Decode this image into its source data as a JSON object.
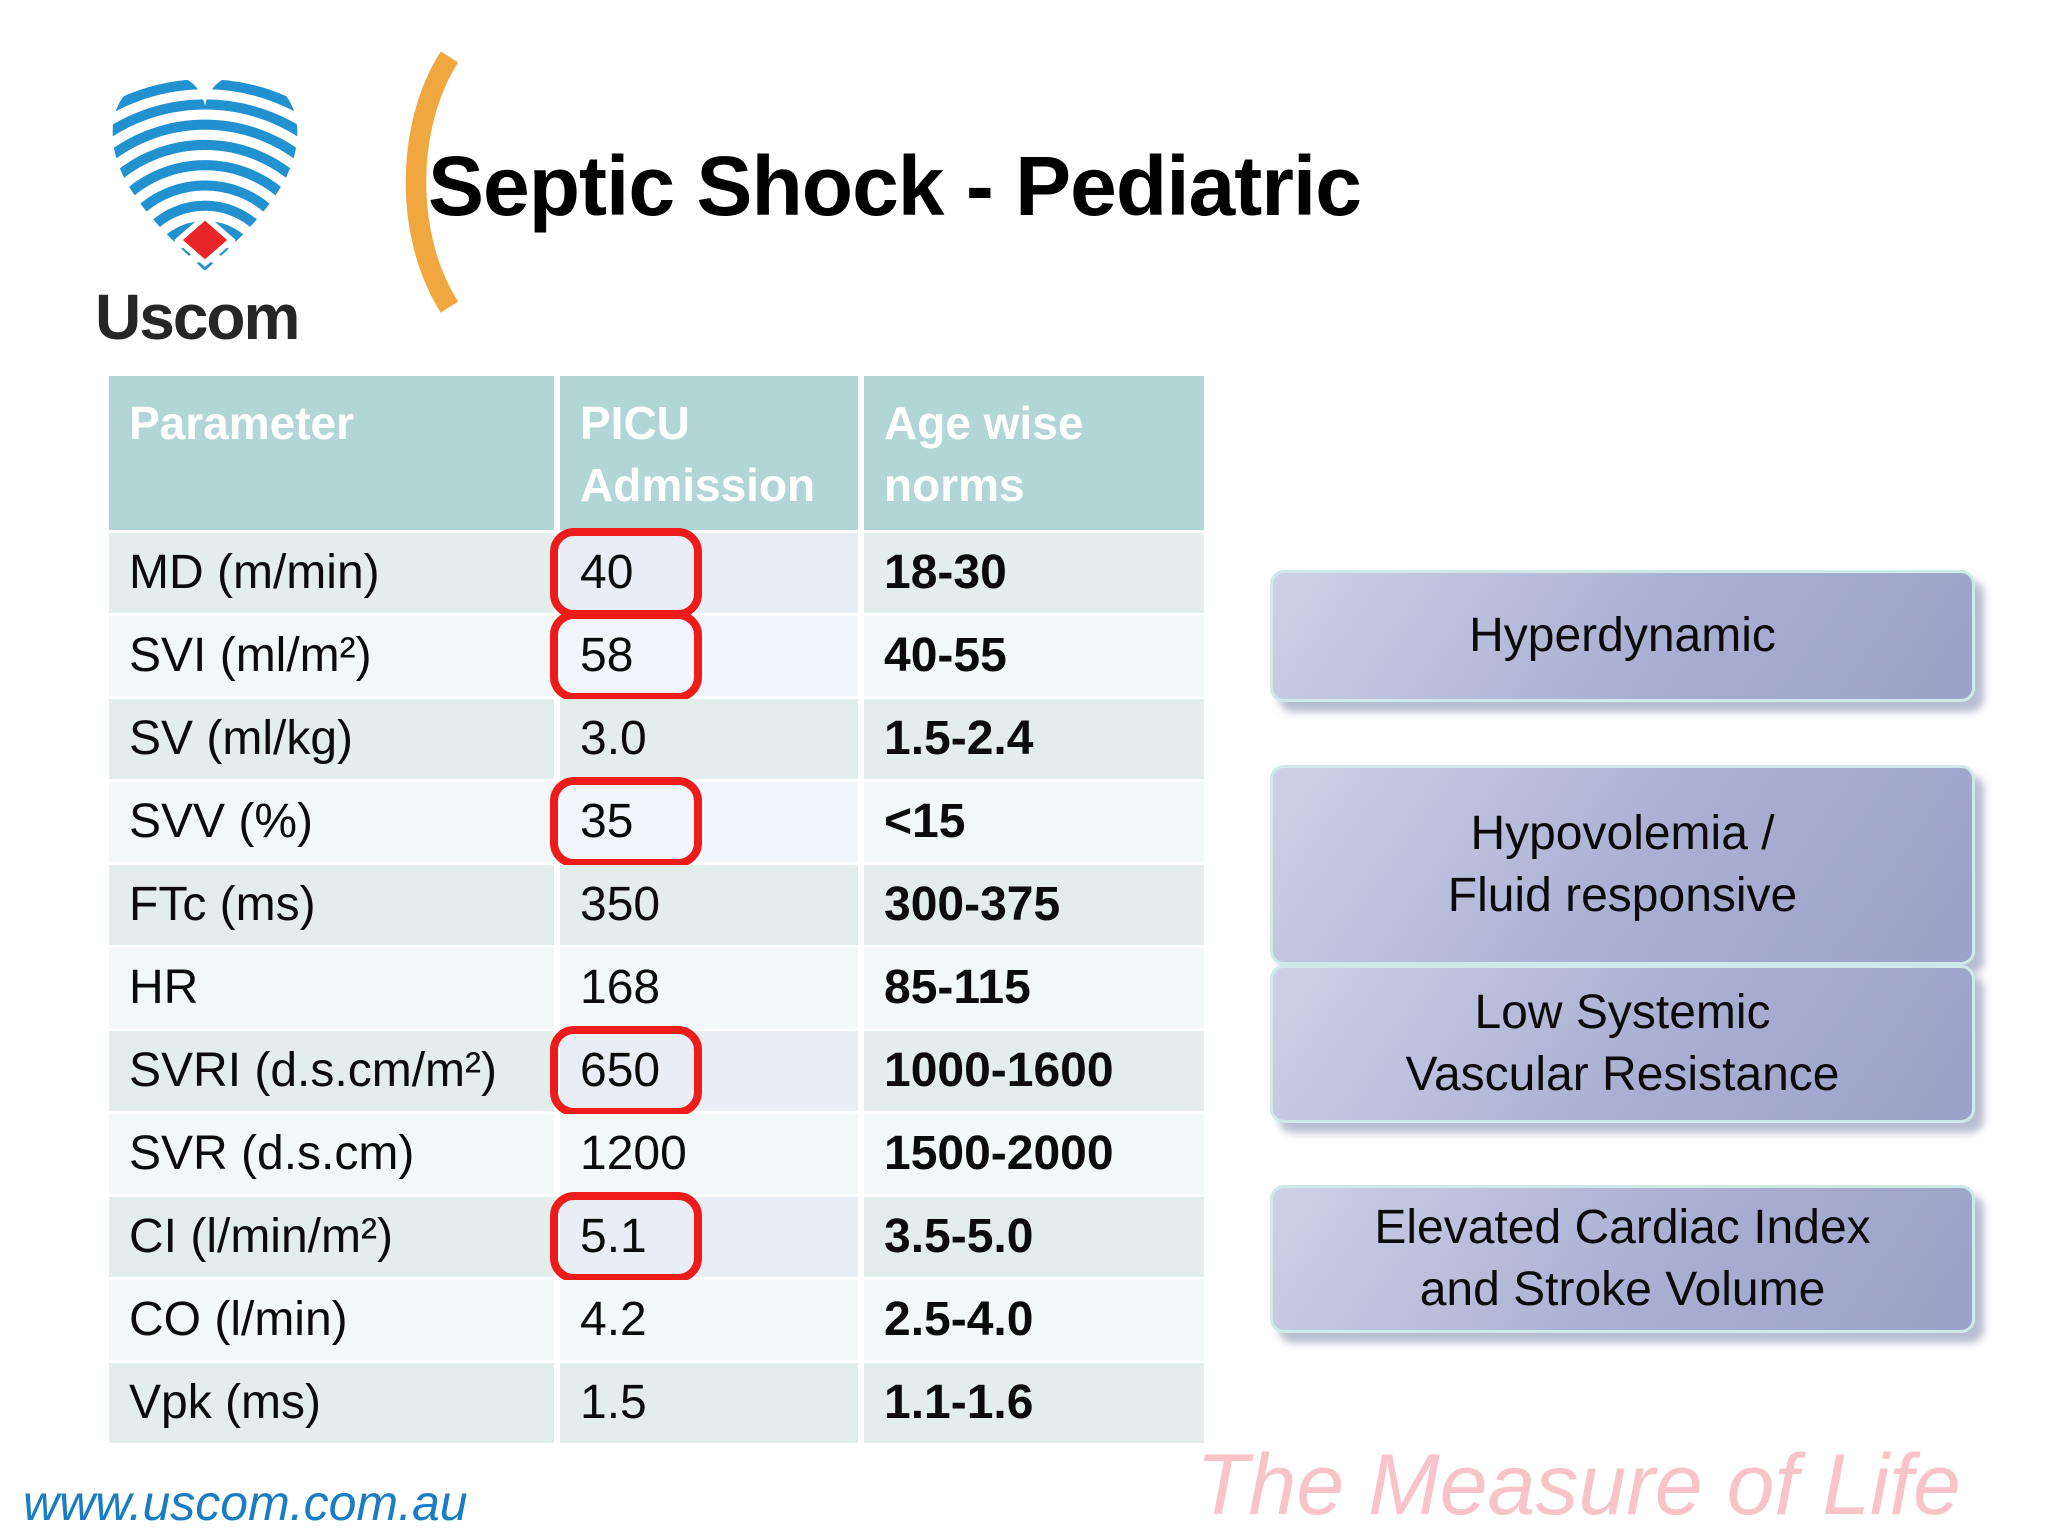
{
  "title": "Septic Shock - Pediatric",
  "logo": {
    "brand": "Uscom"
  },
  "table": {
    "columns": [
      "Parameter",
      "PICU Admission",
      "Age wise norms"
    ],
    "rows": [
      {
        "parameter": "MD (m/min)",
        "picu": "40",
        "norms": "18-30",
        "flagged": true
      },
      {
        "parameter": "SVI (ml/m²)",
        "picu": "58",
        "norms": "40-55",
        "flagged": true
      },
      {
        "parameter": "SV (ml/kg)",
        "picu": "3.0",
        "norms": "1.5-2.4",
        "flagged": false
      },
      {
        "parameter": "SVV (%)",
        "picu": "35",
        "norms": "<15",
        "flagged": true
      },
      {
        "parameter": "FTc (ms)",
        "picu": "350",
        "norms": "300-375",
        "flagged": false
      },
      {
        "parameter": "HR",
        "picu": "168",
        "norms": "85-115",
        "flagged": false
      },
      {
        "parameter": "SVRI (d.s.cm/m²)",
        "picu": "650",
        "norms": "1000-1600",
        "flagged": true
      },
      {
        "parameter": "SVR (d.s.cm)",
        "picu": "1200",
        "norms": "1500-2000",
        "flagged": false
      },
      {
        "parameter": "CI (l/min/m²)",
        "picu": "5.1",
        "norms": "3.5-5.0",
        "flagged": true
      },
      {
        "parameter": "CO (l/min)",
        "picu": "4.2",
        "norms": "2.5-4.0",
        "flagged": false
      },
      {
        "parameter": "Vpk (ms)",
        "picu": "1.5",
        "norms": "1.1-1.6",
        "flagged": false
      }
    ]
  },
  "callouts": [
    {
      "lines": [
        "Hyperdynamic"
      ]
    },
    {
      "lines": [
        "Hypovolemia /",
        "Fluid responsive"
      ]
    },
    {
      "lines": [
        "Low Systemic",
        "Vascular Resistance"
      ]
    },
    {
      "lines": [
        "Elevated Cardiac Index",
        "and Stroke Volume"
      ]
    }
  ],
  "footer": {
    "website": "www.uscom.com.au",
    "tagline": "The Measure of Life"
  },
  "colors": {
    "header_bg": "#b2d6d6",
    "row_odd": "#e2edec",
    "row_even": "#f2f8f7",
    "highlight_red": "#ee1b1b",
    "callout_fill": "#a9afd2",
    "callout_border": "#cdeae9",
    "heart_blue": "#2191d0",
    "heart_red": "#e8262a",
    "arc_orange": "#f0a73f",
    "website_blue": "#1a7dc4",
    "tagline_pink": "#f9c3ca"
  }
}
